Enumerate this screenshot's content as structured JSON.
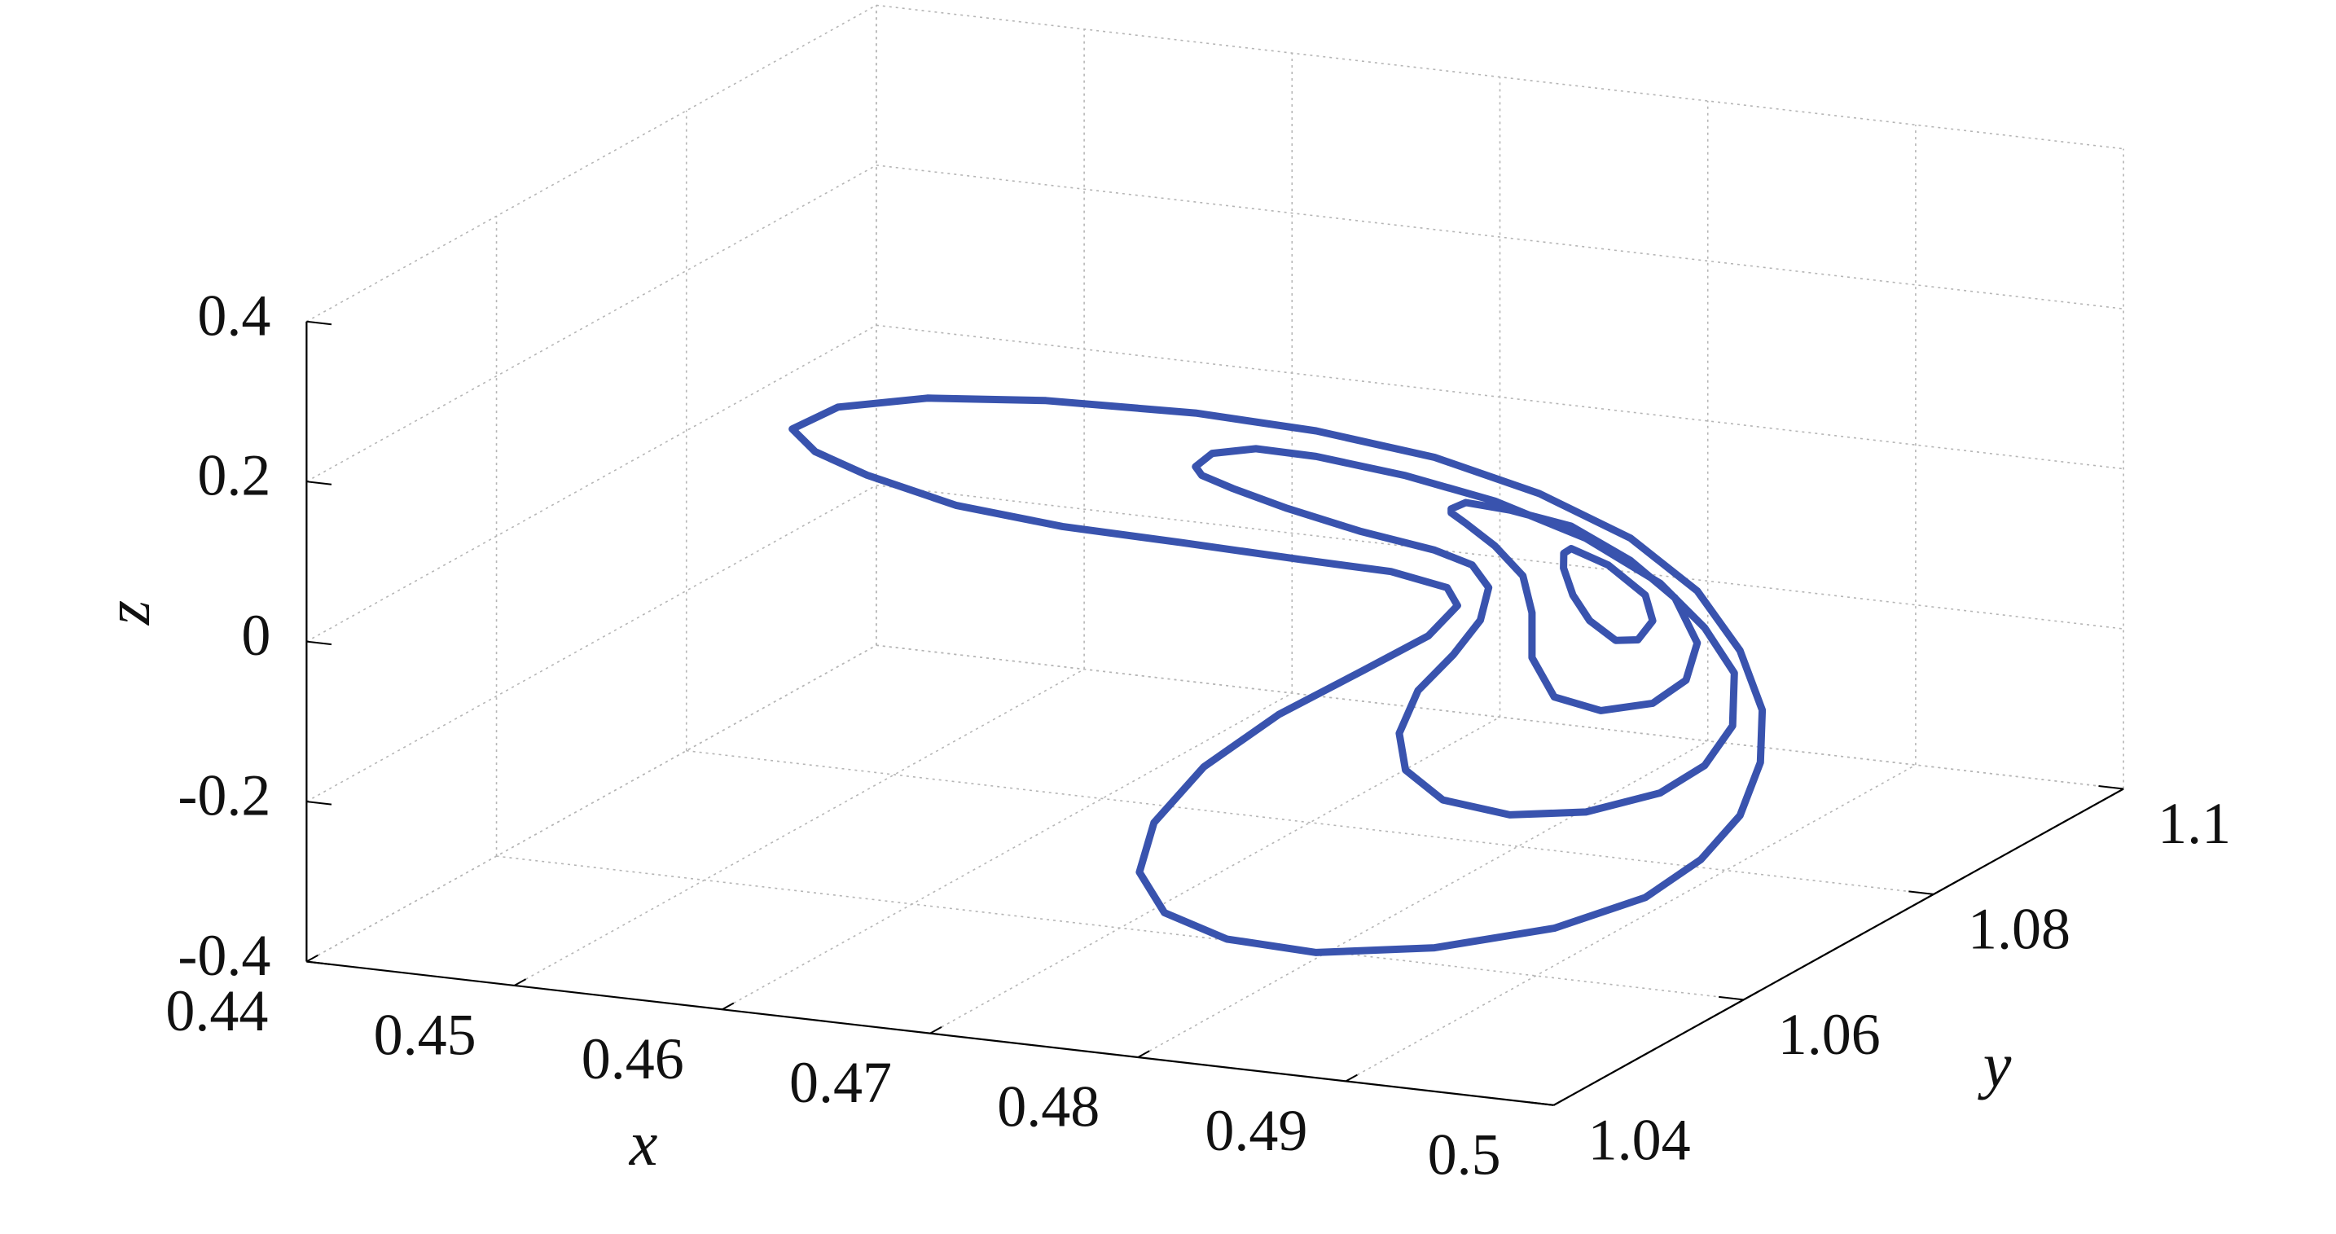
{
  "chart_data": {
    "type": "line3d",
    "xlabel": "x",
    "ylabel": "y",
    "zlabel": "z",
    "color": "#3953ae",
    "grid": true,
    "xlim": [
      0.44,
      0.5
    ],
    "ylim": [
      1.04,
      1.1
    ],
    "zlim": [
      -0.4,
      0.4
    ],
    "xticks": [
      0.44,
      0.45,
      0.46,
      0.47,
      0.48,
      0.49,
      0.5
    ],
    "yticks": [
      1.04,
      1.06,
      1.08,
      1.1
    ],
    "zticks": [
      -0.4,
      -0.2,
      0,
      0.2,
      0.4
    ],
    "x": [
      0.4588,
      0.461,
      0.4653,
      0.471,
      0.4782,
      0.484,
      0.4897,
      0.492,
      0.4909,
      0.49,
      0.4895,
      0.4892,
      0.4892,
      0.4895,
      0.4899,
      0.4907,
      0.4918,
      0.4897,
      0.484,
      0.4797,
      0.4767,
      0.4755,
      0.4762,
      0.4786,
      0.4822,
      0.4863,
      0.4894,
      0.4908,
      0.4903,
      0.4876,
      0.4833,
      0.4775,
      0.4718,
      0.4667,
      0.4624,
      0.4599,
      0.4588,
      null,
      0.4782,
      0.479,
      0.4811,
      0.484,
      0.4883,
      0.4926,
      0.4915,
      0.4905,
      0.4899,
      0.4895,
      0.4896,
      0.4899,
      0.4905,
      0.4915,
      0.4924,
      0.4901,
      0.4883,
      0.488,
      0.4889,
      0.4906,
      0.4919,
      0.4923,
      0.4915,
      0.4897,
      0.4861,
      0.4826,
      0.48,
      0.4785,
      0.4782,
      null,
      0.4905,
      0.4912,
      0.4924,
      0.4917,
      0.4909,
      0.4903,
      0.49,
      0.4901,
      0.4906,
      0.4913,
      0.4918,
      0.4921,
      0.4921,
      0.4923,
      0.4926,
      0.4912,
      0.4905,
      0.4905,
      null,
      0.4918,
      0.4917,
      0.4912,
      0.4907,
      0.4906,
      0.4908,
      0.4911,
      0.4914,
      0.4916,
      0.4917,
      0.4918
    ],
    "y": [
      1.05,
      1.05,
      1.05,
      1.05,
      1.05,
      1.05,
      1.05,
      1.056,
      1.068,
      1.077,
      1.0826,
      1.0856,
      1.0854,
      1.0826,
      1.0776,
      1.07,
      1.058,
      1.05,
      1.05,
      1.05,
      1.05,
      1.05,
      1.05,
      1.05,
      1.05,
      1.05,
      1.05,
      1.05,
      1.05,
      1.05,
      1.05,
      1.05,
      1.05,
      1.05,
      1.05,
      1.05,
      1.05,
      null,
      1.05,
      1.05,
      1.05,
      1.05,
      1.05,
      1.05,
      1.062,
      1.072,
      1.078,
      1.082,
      1.0816,
      1.078,
      1.072,
      1.062,
      1.052,
      1.05,
      1.05,
      1.05,
      1.05,
      1.05,
      1.05,
      1.05,
      1.05,
      1.05,
      1.05,
      1.05,
      1.05,
      1.05,
      1.05,
      null,
      1.05,
      1.05,
      1.052,
      1.06,
      1.068,
      1.074,
      1.077,
      1.0756,
      1.071,
      1.064,
      1.058,
      1.055,
      1.055,
      1.0536,
      1.05,
      1.05,
      1.05,
      1.05,
      null,
      1.059,
      1.06,
      1.065,
      1.07,
      1.071,
      1.069,
      1.066,
      1.0626,
      1.0604,
      1.0592,
      1.059
    ],
    "z": [
      0.256,
      0.29,
      0.314,
      0.328,
      0.334,
      0.329,
      0.313,
      0.235,
      0.097,
      -0.031,
      -0.144,
      -0.239,
      -0.303,
      -0.35,
      -0.371,
      -0.366,
      -0.322,
      -0.3,
      -0.323,
      -0.319,
      -0.295,
      -0.248,
      -0.184,
      -0.107,
      -0.031,
      0.037,
      0.089,
      0.131,
      0.152,
      0.164,
      0.166,
      0.17,
      0.173,
      0.184,
      0.209,
      0.231,
      0.256,
      null,
      0.267,
      0.286,
      0.298,
      0.297,
      0.286,
      0.267,
      0.138,
      0.013,
      -0.084,
      -0.168,
      -0.231,
      -0.256,
      -0.249,
      -0.204,
      -0.139,
      -0.114,
      -0.082,
      -0.037,
      0.019,
      0.069,
      0.116,
      0.158,
      0.184,
      0.197,
      0.21,
      0.228,
      0.245,
      0.257,
      0.267,
      null,
      0.251,
      0.261,
      0.242,
      0.167,
      0.069,
      -0.019,
      -0.096,
      -0.133,
      -0.13,
      -0.091,
      -0.033,
      0.037,
      0.093,
      0.149,
      0.211,
      0.235,
      0.246,
      0.251,
      null,
      0.14,
      0.139,
      0.084,
      0.012,
      -0.027,
      -0.037,
      -0.017,
      0.031,
      0.078,
      0.12,
      0.14
    ]
  }
}
